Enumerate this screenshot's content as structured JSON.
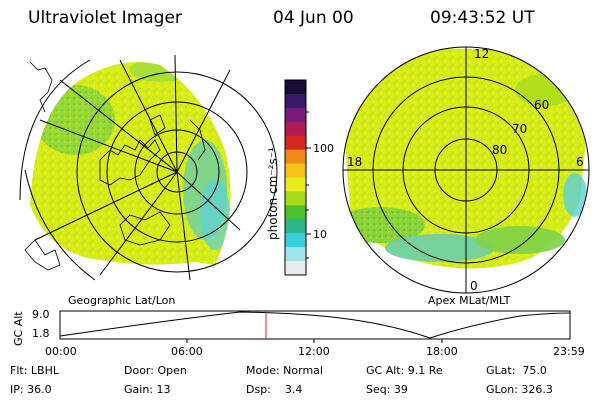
{
  "header": {
    "title": "Ultraviolet Imager",
    "date": "04 Jun 00",
    "time": "09:43:52 UT"
  },
  "left_panel": {
    "caption": "Geographic Lat/Lon"
  },
  "right_panel": {
    "caption": "Apex MLat/MLT",
    "mlt_labels": [
      "12",
      "18",
      "6",
      "0"
    ],
    "mlat_labels": [
      "60",
      "70",
      "80"
    ]
  },
  "colorbar": {
    "label": "photon cm⁻²s⁻¹",
    "ticks": [
      "100",
      "10"
    ],
    "colors_top_to_bottom": [
      "#1a0d33",
      "#3a1a66",
      "#7a1a7a",
      "#b01a55",
      "#d9261f",
      "#f28a1a",
      "#f5c41a",
      "#e8ec1a",
      "#a8dc1a",
      "#4cc12a",
      "#2ab88a",
      "#3ad0e0",
      "#a0e4ea",
      "#e8ecec"
    ]
  },
  "timeline": {
    "ylabel": "GC Alt",
    "y_ticks": [
      "9.0",
      "1.8"
    ],
    "x_ticks": [
      "00:00",
      "06:00",
      "12:00",
      "18:00",
      "23:59"
    ],
    "marker_time": "09:43:52"
  },
  "info": {
    "row1": [
      "Flt: LBHL",
      "Door: Open",
      "Mode: Normal",
      "GC Alt: 9.1 Re",
      "GLat:  75.0"
    ],
    "row2": [
      "IP: 36.0",
      "Gain: 13",
      "Dsp:    3.4",
      "Seq: 39",
      "GLon: 326.3"
    ]
  },
  "colors": {
    "aurora_main": "#d8ec1a",
    "aurora_green": "#7fd24a",
    "aurora_cyan": "#5cd0d8",
    "marker_red": "#d0202a"
  }
}
